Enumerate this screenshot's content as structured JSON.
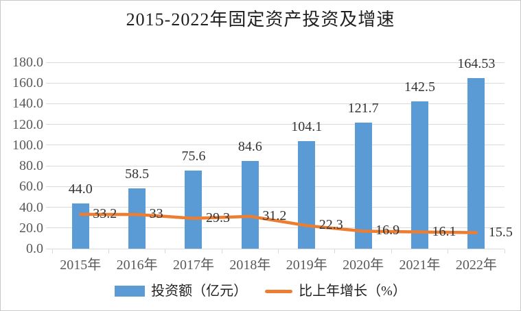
{
  "window": {
    "background": "#ffffff",
    "border_color": "#c8c8c8"
  },
  "chart_data": {
    "type": "bar",
    "title": "2015-2022年固定资产投资及增速",
    "categories": [
      "2015年",
      "2016年",
      "2017年",
      "2018年",
      "2019年",
      "2020年",
      "2021年",
      "2022年"
    ],
    "series": [
      {
        "name": "投资额（亿元）",
        "type": "bar",
        "color": "#5b9bd5",
        "values": [
          44.0,
          58.5,
          75.6,
          84.6,
          104.1,
          121.7,
          142.5,
          164.53
        ],
        "labels": [
          "44.0",
          "58.5",
          "75.6",
          "84.6",
          "104.1",
          "121.7",
          "142.5",
          "164.53"
        ]
      },
      {
        "name": "比上年增长（%）",
        "type": "line",
        "color": "#ed7d31",
        "values": [
          33.2,
          33,
          29.3,
          31.2,
          22.3,
          16.9,
          16.1,
          15.5
        ],
        "labels": [
          "33.2",
          "33",
          "29.3",
          "31.2",
          "22.3",
          "16.9",
          "16.1",
          "15.5"
        ]
      }
    ],
    "xlabel": "",
    "ylabel": "",
    "y_axis": {
      "min": 0,
      "max": 180,
      "step": 20,
      "tick_labels": [
        "0.0",
        "20.0",
        "40.0",
        "60.0",
        "80.0",
        "100.0",
        "120.0",
        "140.0",
        "160.0",
        "180.0"
      ]
    },
    "ylim": [
      0,
      180
    ],
    "grid": true,
    "grid_color": "#d9d9d9",
    "legend_position": "bottom",
    "text_colors": {
      "title": "#1f1f1f",
      "axis": "#595959",
      "data_label": "#333333"
    }
  }
}
